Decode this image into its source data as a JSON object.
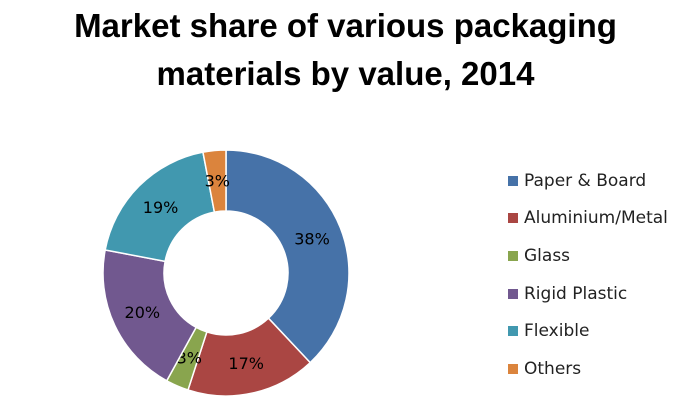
{
  "chart_data": {
    "type": "pie",
    "title_lines": [
      "Market share of various packaging",
      "materials by value, 2014"
    ],
    "categories": [
      "Paper & Board",
      "Aluminium/Metal",
      "Glass",
      "Rigid Plastic",
      "Flexible",
      "Others"
    ],
    "values": [
      38,
      17,
      3,
      20,
      19,
      3
    ],
    "value_labels": [
      "38%",
      "17%",
      "3%",
      "20%",
      "19%",
      "3%"
    ],
    "colors": [
      "#4672A8",
      "#AA4643",
      "#89A54E",
      "#71588F",
      "#4198AF",
      "#DB843D"
    ],
    "donut": true,
    "legend_placement": "right"
  }
}
